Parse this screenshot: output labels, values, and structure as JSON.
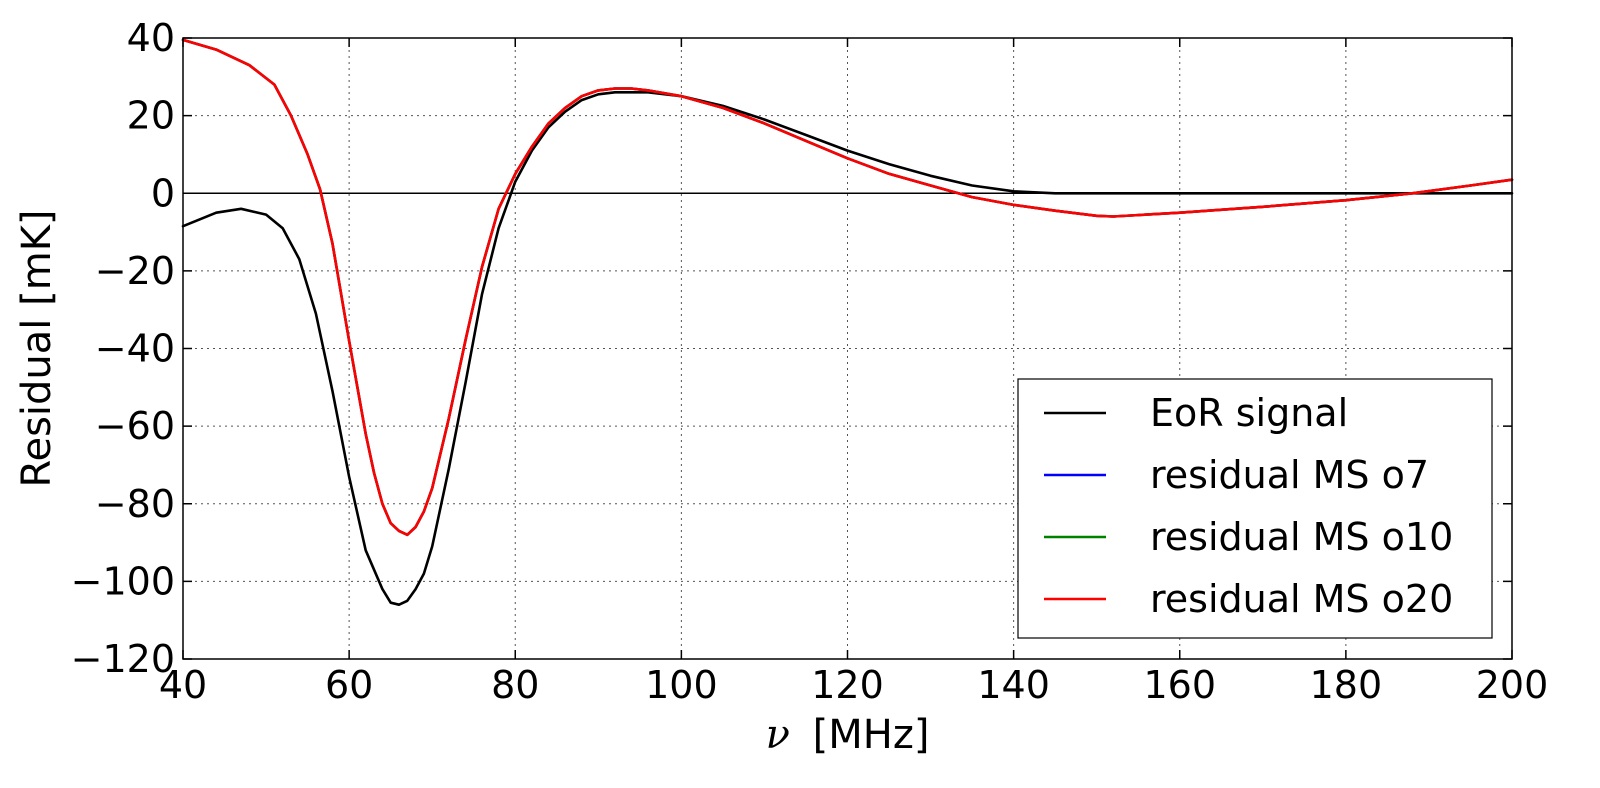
{
  "chart_data": {
    "type": "line",
    "title": "",
    "xlabel_symbol": "ν",
    "xlabel_unit": "[MHz]",
    "ylabel": "Residual [mK]",
    "xlim": [
      40,
      200
    ],
    "ylim": [
      -120,
      40
    ],
    "xticks": [
      40,
      60,
      80,
      100,
      120,
      140,
      160,
      180,
      200
    ],
    "yticks": [
      40,
      20,
      0,
      -20,
      -40,
      -60,
      -80,
      -100,
      -120
    ],
    "xtick_labels": [
      "40",
      "60",
      "80",
      "100",
      "120",
      "140",
      "160",
      "180",
      "200"
    ],
    "ytick_labels": [
      "40",
      "20",
      "0",
      "−20",
      "−40",
      "−60",
      "−80",
      "−100",
      "−120"
    ],
    "grid": true,
    "zero_line": true,
    "legend_position": "lower-right",
    "series": [
      {
        "name": "EoR signal",
        "color": "#000000",
        "x": [
          40,
          44,
          47,
          50,
          52,
          54,
          56,
          58,
          60,
          62,
          64,
          65,
          66,
          67,
          68,
          69,
          70,
          72,
          74,
          76,
          78,
          80,
          82,
          84,
          86,
          88,
          90,
          92,
          94,
          96,
          100,
          105,
          110,
          115,
          120,
          125,
          130,
          135,
          140,
          145,
          150,
          152,
          160,
          170,
          180,
          190,
          200
        ],
        "y": [
          -8.5,
          -5,
          -4,
          -5.5,
          -9,
          -17,
          -31,
          -51,
          -73,
          -92,
          -102,
          -105.5,
          -106,
          -105,
          -102,
          -98,
          -91,
          -71,
          -49,
          -26,
          -9,
          3,
          11,
          17,
          21,
          24,
          25.5,
          26,
          26,
          26,
          25,
          22.5,
          19,
          15,
          11,
          7.5,
          4.5,
          2,
          0.5,
          0,
          0,
          0,
          0,
          0,
          0,
          0,
          0
        ]
      },
      {
        "name": "residual MS o7",
        "color": "#0000ff",
        "x": [
          40,
          44,
          48,
          51,
          53,
          55,
          56.5,
          58,
          60,
          62,
          63,
          64,
          65,
          66,
          67,
          68,
          69,
          70,
          72,
          74,
          76,
          78,
          80,
          82,
          84,
          86,
          88,
          90,
          92,
          94,
          96,
          100,
          105,
          110,
          115,
          120,
          125,
          130,
          135,
          140,
          145,
          150,
          152,
          156,
          160,
          170,
          180,
          188,
          195,
          200
        ],
        "y": [
          39.5,
          37,
          33,
          28,
          20,
          10,
          1,
          -13,
          -38,
          -62,
          -72,
          -80,
          -85,
          -87,
          -88,
          -86,
          -82,
          -76,
          -58,
          -38,
          -19,
          -4,
          5,
          12,
          18,
          22,
          25,
          26.5,
          27,
          27,
          26.5,
          25,
          22,
          18,
          13.5,
          9,
          5,
          2,
          -1,
          -3,
          -4.5,
          -5.8,
          -6,
          -5.5,
          -5,
          -3.5,
          -1.8,
          0,
          2,
          3.5
        ]
      },
      {
        "name": "residual MS o10",
        "color": "#008000",
        "x": [
          40,
          44,
          48,
          51,
          53,
          55,
          56.5,
          58,
          60,
          62,
          63,
          64,
          65,
          66,
          67,
          68,
          69,
          70,
          72,
          74,
          76,
          78,
          80,
          82,
          84,
          86,
          88,
          90,
          92,
          94,
          96,
          100,
          105,
          110,
          115,
          120,
          125,
          130,
          135,
          140,
          145,
          150,
          152,
          156,
          160,
          170,
          180,
          188,
          195,
          200
        ],
        "y": [
          39.5,
          37,
          33,
          28,
          20,
          10,
          1,
          -13,
          -38,
          -62,
          -72,
          -80,
          -85,
          -87,
          -88,
          -86,
          -82,
          -76,
          -58,
          -38,
          -19,
          -4,
          5,
          12,
          18,
          22,
          25,
          26.5,
          27,
          27,
          26.5,
          25,
          22,
          18,
          13.5,
          9,
          5,
          2,
          -1,
          -3,
          -4.5,
          -5.8,
          -6,
          -5.5,
          -5,
          -3.5,
          -1.8,
          0,
          2,
          3.5
        ]
      },
      {
        "name": "residual MS o20",
        "color": "#ff0000",
        "x": [
          40,
          44,
          48,
          51,
          53,
          55,
          56.5,
          58,
          60,
          62,
          63,
          64,
          65,
          66,
          67,
          68,
          69,
          70,
          72,
          74,
          76,
          78,
          80,
          82,
          84,
          86,
          88,
          90,
          92,
          94,
          96,
          100,
          105,
          110,
          115,
          120,
          125,
          130,
          135,
          140,
          145,
          150,
          152,
          156,
          160,
          170,
          180,
          188,
          195,
          200
        ],
        "y": [
          39.5,
          37,
          33,
          28,
          20,
          10,
          1,
          -13,
          -38,
          -62,
          -72,
          -80,
          -85,
          -87,
          -88,
          -86,
          -82,
          -76,
          -58,
          -38,
          -19,
          -4,
          5,
          12,
          18,
          22,
          25,
          26.5,
          27,
          27,
          26.5,
          25,
          22,
          18,
          13.5,
          9,
          5,
          2,
          -1,
          -3,
          -4.5,
          -5.8,
          -6,
          -5.5,
          -5,
          -3.5,
          -1.8,
          0,
          2,
          3.5
        ]
      }
    ]
  }
}
